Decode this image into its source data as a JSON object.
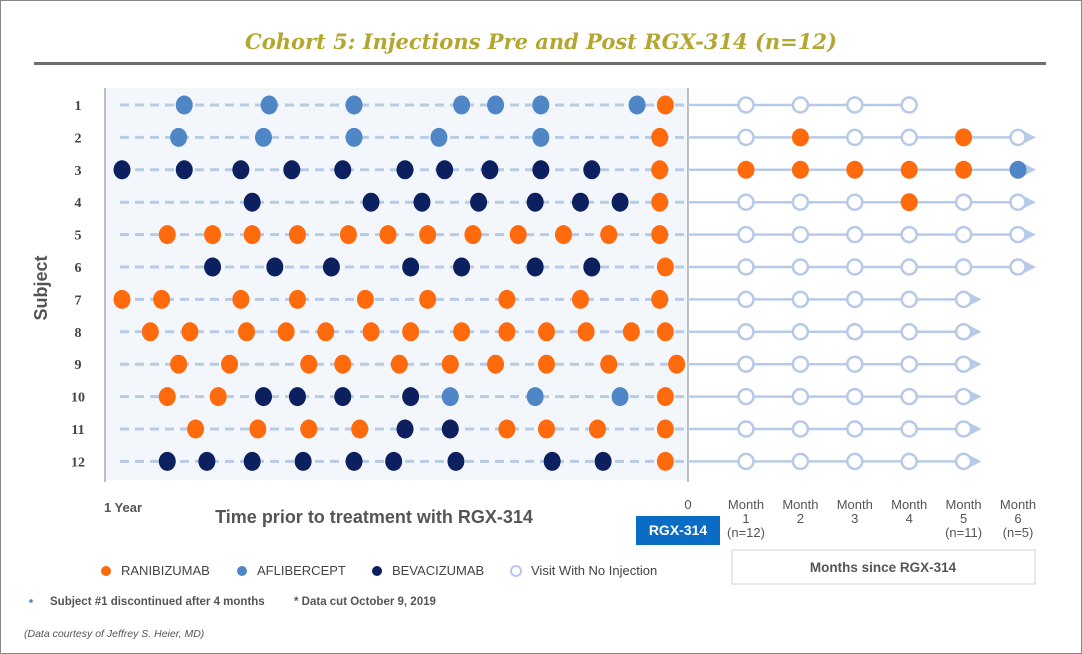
{
  "chart_data": {
    "type": "scatter",
    "title": "Cohort 5: Injections Pre and Post RGX-314 (n=12)",
    "ylabel": "Subject",
    "pre_xlabel": "Time prior to treatment with RGX-314",
    "pre_ticks": [
      "1 Year",
      "0"
    ],
    "pre_range_years": [
      -1,
      0
    ],
    "post_xlabel": "Months since RGX-314",
    "post_ticks": [
      {
        "label": "Month",
        "month": "1",
        "n": "(n=12)"
      },
      {
        "label": "Month",
        "month": "2",
        "n": ""
      },
      {
        "label": "Month",
        "month": "3",
        "n": ""
      },
      {
        "label": "Month",
        "month": "4",
        "n": ""
      },
      {
        "label": "Month",
        "month": "5",
        "n": "(n=11)"
      },
      {
        "label": "Month",
        "month": "6",
        "n": "(n=5)"
      }
    ],
    "treatment_label": "RGX-314",
    "colors": {
      "R": "#ff6a0d",
      "A": "#4f86c6",
      "B": "#0c1f5e",
      "N": "#b6c9e8",
      "treatment": "#0a6cc4"
    },
    "legend": [
      {
        "key": "R",
        "label": "RANIBIZUMAB"
      },
      {
        "key": "A",
        "label": "AFLIBERCEPT"
      },
      {
        "key": "B",
        "label": "BEVACIZUMAB"
      },
      {
        "key": "N",
        "label": "Visit With No Injection"
      }
    ],
    "subjects": [
      {
        "id": "1",
        "pre": [
          [
            -0.89,
            "A"
          ],
          [
            -0.74,
            "A"
          ],
          [
            -0.59,
            "A"
          ],
          [
            -0.4,
            "A"
          ],
          [
            -0.34,
            "A"
          ],
          [
            -0.26,
            "A"
          ],
          [
            -0.09,
            "A"
          ],
          [
            -0.04,
            "R"
          ]
        ],
        "post": [
          "N",
          "N",
          "N",
          "N"
        ],
        "ongoing": false
      },
      {
        "id": "2",
        "pre": [
          [
            -0.9,
            "A"
          ],
          [
            -0.75,
            "A"
          ],
          [
            -0.59,
            "A"
          ],
          [
            -0.44,
            "A"
          ],
          [
            -0.26,
            "A"
          ],
          [
            -0.05,
            "R"
          ]
        ],
        "post": [
          "N",
          "R",
          "N",
          "N",
          "R",
          "N"
        ],
        "ongoing": true
      },
      {
        "id": "3",
        "pre": [
          [
            -1.0,
            "B"
          ],
          [
            -0.89,
            "B"
          ],
          [
            -0.79,
            "B"
          ],
          [
            -0.7,
            "B"
          ],
          [
            -0.61,
            "B"
          ],
          [
            -0.5,
            "B"
          ],
          [
            -0.43,
            "B"
          ],
          [
            -0.35,
            "B"
          ],
          [
            -0.26,
            "B"
          ],
          [
            -0.17,
            "B"
          ],
          [
            -0.05,
            "R"
          ]
        ],
        "post": [
          "R",
          "R",
          "R",
          "R",
          "R",
          "A"
        ],
        "ongoing": true
      },
      {
        "id": "4",
        "pre": [
          [
            -0.77,
            "B"
          ],
          [
            -0.56,
            "B"
          ],
          [
            -0.47,
            "B"
          ],
          [
            -0.37,
            "B"
          ],
          [
            -0.27,
            "B"
          ],
          [
            -0.19,
            "B"
          ],
          [
            -0.12,
            "B"
          ],
          [
            -0.05,
            "R"
          ]
        ],
        "post": [
          "N",
          "N",
          "N",
          "R",
          "N",
          "N"
        ],
        "ongoing": true
      },
      {
        "id": "5",
        "pre": [
          [
            -0.92,
            "R"
          ],
          [
            -0.84,
            "R"
          ],
          [
            -0.77,
            "R"
          ],
          [
            -0.69,
            "R"
          ],
          [
            -0.6,
            "R"
          ],
          [
            -0.53,
            "R"
          ],
          [
            -0.46,
            "R"
          ],
          [
            -0.38,
            "R"
          ],
          [
            -0.3,
            "R"
          ],
          [
            -0.22,
            "R"
          ],
          [
            -0.14,
            "R"
          ],
          [
            -0.05,
            "R"
          ]
        ],
        "post": [
          "N",
          "N",
          "N",
          "N",
          "N",
          "N"
        ],
        "ongoing": true
      },
      {
        "id": "6",
        "pre": [
          [
            -0.84,
            "B"
          ],
          [
            -0.73,
            "B"
          ],
          [
            -0.63,
            "B"
          ],
          [
            -0.49,
            "B"
          ],
          [
            -0.4,
            "B"
          ],
          [
            -0.27,
            "B"
          ],
          [
            -0.17,
            "B"
          ],
          [
            -0.04,
            "R"
          ]
        ],
        "post": [
          "N",
          "N",
          "N",
          "N",
          "N",
          "N"
        ],
        "ongoing": true
      },
      {
        "id": "7",
        "pre": [
          [
            -1.0,
            "R"
          ],
          [
            -0.93,
            "R"
          ],
          [
            -0.79,
            "R"
          ],
          [
            -0.69,
            "R"
          ],
          [
            -0.57,
            "R"
          ],
          [
            -0.46,
            "R"
          ],
          [
            -0.32,
            "R"
          ],
          [
            -0.19,
            "R"
          ],
          [
            -0.05,
            "R"
          ]
        ],
        "post": [
          "N",
          "N",
          "N",
          "N",
          "N"
        ],
        "ongoing": true
      },
      {
        "id": "8",
        "pre": [
          [
            -0.95,
            "R"
          ],
          [
            -0.88,
            "R"
          ],
          [
            -0.78,
            "R"
          ],
          [
            -0.71,
            "R"
          ],
          [
            -0.64,
            "R"
          ],
          [
            -0.56,
            "R"
          ],
          [
            -0.49,
            "R"
          ],
          [
            -0.4,
            "R"
          ],
          [
            -0.32,
            "R"
          ],
          [
            -0.25,
            "R"
          ],
          [
            -0.18,
            "R"
          ],
          [
            -0.1,
            "R"
          ],
          [
            -0.04,
            "R"
          ]
        ],
        "post": [
          "N",
          "N",
          "N",
          "N",
          "N"
        ],
        "ongoing": true
      },
      {
        "id": "9",
        "pre": [
          [
            -0.9,
            "R"
          ],
          [
            -0.81,
            "R"
          ],
          [
            -0.67,
            "R"
          ],
          [
            -0.61,
            "R"
          ],
          [
            -0.51,
            "R"
          ],
          [
            -0.42,
            "R"
          ],
          [
            -0.34,
            "R"
          ],
          [
            -0.25,
            "R"
          ],
          [
            -0.14,
            "R"
          ],
          [
            -0.02,
            "R"
          ]
        ],
        "post": [
          "N",
          "N",
          "N",
          "N",
          "N"
        ],
        "ongoing": true
      },
      {
        "id": "10",
        "pre": [
          [
            -0.92,
            "R"
          ],
          [
            -0.83,
            "R"
          ],
          [
            -0.75,
            "B"
          ],
          [
            -0.69,
            "B"
          ],
          [
            -0.61,
            "B"
          ],
          [
            -0.49,
            "B"
          ],
          [
            -0.42,
            "A"
          ],
          [
            -0.27,
            "A"
          ],
          [
            -0.12,
            "A"
          ],
          [
            -0.04,
            "R"
          ]
        ],
        "post": [
          "N",
          "N",
          "N",
          "N",
          "N"
        ],
        "ongoing": true
      },
      {
        "id": "11",
        "pre": [
          [
            -0.87,
            "R"
          ],
          [
            -0.76,
            "R"
          ],
          [
            -0.67,
            "R"
          ],
          [
            -0.58,
            "R"
          ],
          [
            -0.5,
            "B"
          ],
          [
            -0.42,
            "B"
          ],
          [
            -0.32,
            "R"
          ],
          [
            -0.25,
            "R"
          ],
          [
            -0.16,
            "R"
          ],
          [
            -0.04,
            "R"
          ]
        ],
        "post": [
          "N",
          "N",
          "N",
          "N",
          "N"
        ],
        "ongoing": true
      },
      {
        "id": "12",
        "pre": [
          [
            -0.92,
            "B"
          ],
          [
            -0.85,
            "B"
          ],
          [
            -0.77,
            "B"
          ],
          [
            -0.68,
            "B"
          ],
          [
            -0.59,
            "B"
          ],
          [
            -0.52,
            "B"
          ],
          [
            -0.41,
            "B"
          ],
          [
            -0.24,
            "B"
          ],
          [
            -0.15,
            "B"
          ],
          [
            -0.04,
            "R"
          ]
        ],
        "post": [
          "N",
          "N",
          "N",
          "N",
          "N"
        ],
        "ongoing": true
      }
    ]
  },
  "notes": {
    "discontinued": "Subject #1 discontinued after 4 months",
    "data_cut": "* Data cut October 9, 2019",
    "credit": "(Data courtesy of Jeffrey S. Heier, MD)"
  }
}
